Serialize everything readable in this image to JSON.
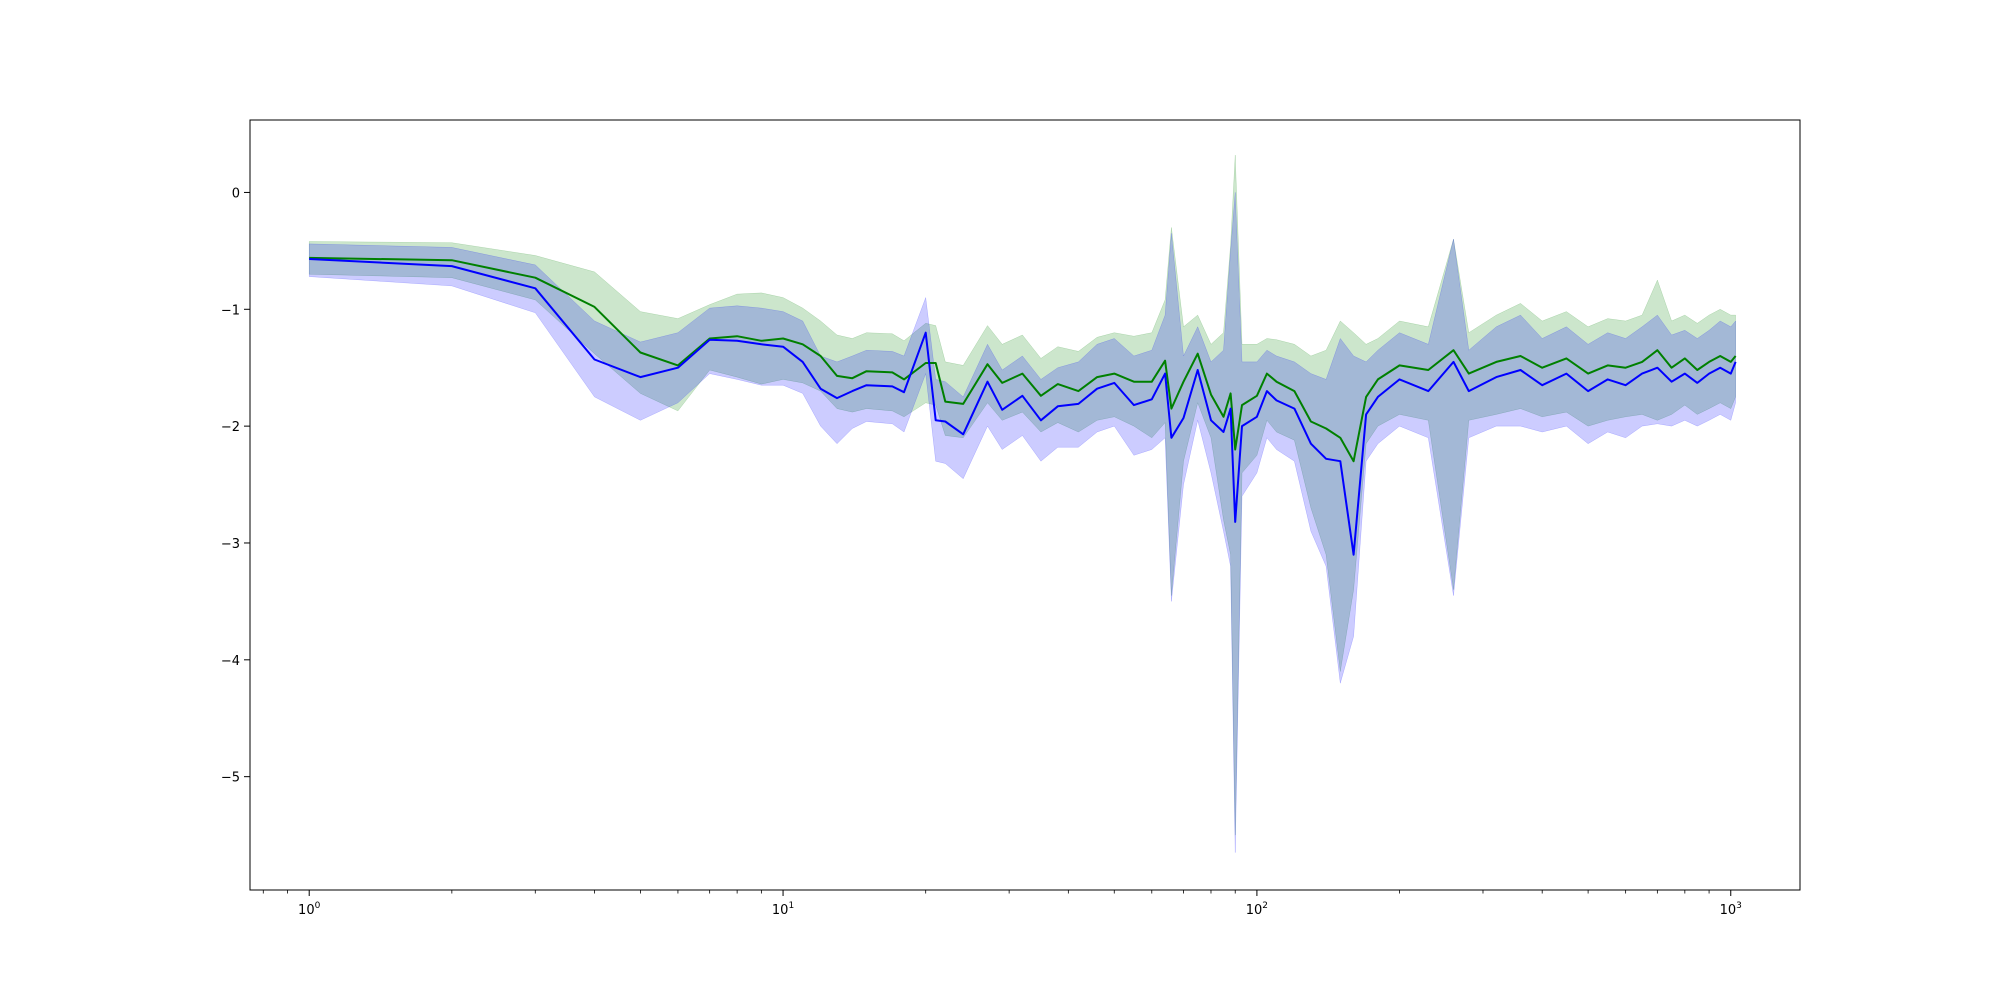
{
  "chart_data": {
    "type": "line",
    "xscale": "log",
    "xlim": [
      0.75,
      1400
    ],
    "ylim": [
      -5.97,
      0.62
    ],
    "grid": false,
    "legend": "none",
    "xticks": [
      {
        "value": 1,
        "base": "10",
        "exp": "0"
      },
      {
        "value": 10,
        "base": "10",
        "exp": "1"
      },
      {
        "value": 100,
        "base": "10",
        "exp": "2"
      },
      {
        "value": 1000,
        "base": "10",
        "exp": "3"
      }
    ],
    "yticks": [
      {
        "value": 0,
        "label": "0"
      },
      {
        "value": -1,
        "label": "−1"
      },
      {
        "value": -2,
        "label": "−2"
      },
      {
        "value": -3,
        "label": "−3"
      },
      {
        "value": -4,
        "label": "−4"
      },
      {
        "value": -5,
        "label": "−5"
      }
    ],
    "series": [
      {
        "color": "#008000",
        "band_color": "#008000",
        "band_opacity": 0.2,
        "points": [
          [
            1,
            -0.56,
            -0.42,
            -0.7
          ],
          [
            2,
            -0.58,
            -0.43,
            -0.73
          ],
          [
            3,
            -0.73,
            -0.54,
            -0.92
          ],
          [
            4,
            -0.98,
            -0.68,
            -1.38
          ],
          [
            5,
            -1.37,
            -1.02,
            -1.72
          ],
          [
            6,
            -1.48,
            -1.08,
            -1.87
          ],
          [
            7,
            -1.25,
            -0.96,
            -1.52
          ],
          [
            8,
            -1.23,
            -0.87,
            -1.58
          ],
          [
            9,
            -1.27,
            -0.86,
            -1.64
          ],
          [
            10,
            -1.25,
            -0.9,
            -1.6
          ],
          [
            11,
            -1.3,
            -0.99,
            -1.63
          ],
          [
            12,
            -1.4,
            -1.1,
            -1.7
          ],
          [
            13,
            -1.57,
            -1.22,
            -1.85
          ],
          [
            14,
            -1.59,
            -1.25,
            -1.88
          ],
          [
            15,
            -1.53,
            -1.2,
            -1.85
          ],
          [
            17,
            -1.54,
            -1.21,
            -1.87
          ],
          [
            18,
            -1.6,
            -1.27,
            -1.92
          ],
          [
            20,
            -1.46,
            -1.12,
            -1.8
          ],
          [
            21,
            -1.46,
            -1.14,
            -1.82
          ],
          [
            22,
            -1.79,
            -1.45,
            -2.08
          ],
          [
            24,
            -1.81,
            -1.48,
            -2.1
          ],
          [
            27,
            -1.47,
            -1.14,
            -1.8
          ],
          [
            29,
            -1.63,
            -1.3,
            -1.95
          ],
          [
            32,
            -1.55,
            -1.22,
            -1.88
          ],
          [
            35,
            -1.74,
            -1.42,
            -2.05
          ],
          [
            38,
            -1.64,
            -1.32,
            -1.97
          ],
          [
            42,
            -1.7,
            -1.36,
            -2.05
          ],
          [
            46,
            -1.58,
            -1.24,
            -1.95
          ],
          [
            50,
            -1.55,
            -1.2,
            -1.92
          ],
          [
            55,
            -1.62,
            -1.23,
            -2.0
          ],
          [
            60,
            -1.62,
            -1.2,
            -2.1
          ],
          [
            64,
            -1.44,
            -0.92,
            -1.97
          ],
          [
            66,
            -1.85,
            -0.3,
            -3.45
          ],
          [
            70,
            -1.62,
            -1.15,
            -2.3
          ],
          [
            75,
            -1.38,
            -1.05,
            -1.8
          ],
          [
            80,
            -1.73,
            -1.3,
            -2.1
          ],
          [
            85,
            -1.92,
            -1.2,
            -2.8
          ],
          [
            88,
            -1.72,
            -0.45,
            -3.1
          ],
          [
            90,
            -2.2,
            0.32,
            -5.5
          ],
          [
            93,
            -1.82,
            -1.3,
            -2.4
          ],
          [
            100,
            -1.74,
            -1.3,
            -2.25
          ],
          [
            105,
            -1.55,
            -1.25,
            -1.95
          ],
          [
            110,
            -1.62,
            -1.26,
            -2.05
          ],
          [
            120,
            -1.7,
            -1.3,
            -2.12
          ],
          [
            130,
            -1.96,
            -1.4,
            -2.7
          ],
          [
            140,
            -2.02,
            -1.35,
            -3.1
          ],
          [
            150,
            -2.1,
            -1.1,
            -4.1
          ],
          [
            160,
            -2.3,
            -1.2,
            -3.4
          ],
          [
            170,
            -1.75,
            -1.3,
            -2.15
          ],
          [
            180,
            -1.6,
            -1.25,
            -2.0
          ],
          [
            200,
            -1.48,
            -1.1,
            -1.9
          ],
          [
            230,
            -1.52,
            -1.15,
            -1.95
          ],
          [
            260,
            -1.35,
            -0.4,
            -3.4
          ],
          [
            280,
            -1.55,
            -1.2,
            -1.95
          ],
          [
            320,
            -1.45,
            -1.05,
            -1.9
          ],
          [
            360,
            -1.4,
            -0.95,
            -1.85
          ],
          [
            400,
            -1.5,
            -1.1,
            -1.92
          ],
          [
            450,
            -1.42,
            -1.02,
            -1.88
          ],
          [
            500,
            -1.55,
            -1.15,
            -2.0
          ],
          [
            550,
            -1.48,
            -1.08,
            -1.95
          ],
          [
            600,
            -1.5,
            -1.1,
            -1.92
          ],
          [
            650,
            -1.45,
            -1.05,
            -1.9
          ],
          [
            700,
            -1.35,
            -0.75,
            -1.95
          ],
          [
            750,
            -1.5,
            -1.1,
            -1.9
          ],
          [
            800,
            -1.42,
            -1.05,
            -1.82
          ],
          [
            850,
            -1.52,
            -1.12,
            -1.9
          ],
          [
            900,
            -1.45,
            -1.05,
            -1.85
          ],
          [
            950,
            -1.4,
            -1.0,
            -1.8
          ],
          [
            1000,
            -1.45,
            -1.05,
            -1.85
          ],
          [
            1024,
            -1.4,
            -1.05,
            -1.75
          ]
        ]
      },
      {
        "color": "#0000ff",
        "band_color": "#0000ff",
        "band_opacity": 0.2,
        "points": [
          [
            1,
            -0.57,
            -0.44,
            -0.72
          ],
          [
            2,
            -0.63,
            -0.47,
            -0.8
          ],
          [
            3,
            -0.82,
            -0.62,
            -1.03
          ],
          [
            4,
            -1.43,
            -1.1,
            -1.75
          ],
          [
            5,
            -1.58,
            -1.28,
            -1.95
          ],
          [
            6,
            -1.5,
            -1.2,
            -1.8
          ],
          [
            7,
            -1.26,
            -0.99,
            -1.55
          ],
          [
            8,
            -1.27,
            -0.97,
            -1.6
          ],
          [
            9,
            -1.3,
            -0.99,
            -1.65
          ],
          [
            10,
            -1.32,
            -1.02,
            -1.65
          ],
          [
            11,
            -1.45,
            -1.1,
            -1.72
          ],
          [
            12,
            -1.68,
            -1.4,
            -2.0
          ],
          [
            13,
            -1.76,
            -1.45,
            -2.15
          ],
          [
            14,
            -1.7,
            -1.4,
            -2.02
          ],
          [
            15,
            -1.65,
            -1.35,
            -1.96
          ],
          [
            17,
            -1.66,
            -1.36,
            -1.98
          ],
          [
            18,
            -1.71,
            -1.4,
            -2.05
          ],
          [
            20,
            -1.2,
            -0.9,
            -1.55
          ],
          [
            21,
            -1.95,
            -1.6,
            -2.3
          ],
          [
            22,
            -1.96,
            -1.62,
            -2.32
          ],
          [
            24,
            -2.07,
            -1.75,
            -2.45
          ],
          [
            27,
            -1.62,
            -1.3,
            -2.0
          ],
          [
            29,
            -1.86,
            -1.52,
            -2.2
          ],
          [
            32,
            -1.74,
            -1.4,
            -2.08
          ],
          [
            35,
            -1.95,
            -1.6,
            -2.3
          ],
          [
            38,
            -1.83,
            -1.5,
            -2.18
          ],
          [
            42,
            -1.81,
            -1.45,
            -2.18
          ],
          [
            46,
            -1.68,
            -1.3,
            -2.05
          ],
          [
            50,
            -1.63,
            -1.25,
            -2.0
          ],
          [
            55,
            -1.82,
            -1.4,
            -2.25
          ],
          [
            60,
            -1.77,
            -1.35,
            -2.2
          ],
          [
            64,
            -1.55,
            -1.05,
            -2.1
          ],
          [
            66,
            -2.1,
            -0.35,
            -3.5
          ],
          [
            70,
            -1.93,
            -1.4,
            -2.5
          ],
          [
            75,
            -1.52,
            -1.15,
            -1.95
          ],
          [
            80,
            -1.95,
            -1.45,
            -2.4
          ],
          [
            85,
            -2.05,
            -1.35,
            -2.9
          ],
          [
            88,
            -1.85,
            -0.5,
            -3.2
          ],
          [
            90,
            -2.82,
            0.0,
            -5.65
          ],
          [
            93,
            -2.0,
            -1.45,
            -2.6
          ],
          [
            100,
            -1.92,
            -1.45,
            -2.4
          ],
          [
            105,
            -1.7,
            -1.35,
            -2.1
          ],
          [
            110,
            -1.78,
            -1.4,
            -2.2
          ],
          [
            120,
            -1.85,
            -1.45,
            -2.3
          ],
          [
            130,
            -2.15,
            -1.55,
            -2.9
          ],
          [
            140,
            -2.28,
            -1.6,
            -3.2
          ],
          [
            150,
            -2.3,
            -1.25,
            -4.2
          ],
          [
            160,
            -3.1,
            -1.4,
            -3.8
          ],
          [
            170,
            -1.9,
            -1.45,
            -2.3
          ],
          [
            180,
            -1.75,
            -1.35,
            -2.15
          ],
          [
            200,
            -1.6,
            -1.2,
            -2.0
          ],
          [
            230,
            -1.7,
            -1.3,
            -2.1
          ],
          [
            260,
            -1.45,
            -0.4,
            -3.45
          ],
          [
            280,
            -1.7,
            -1.35,
            -2.1
          ],
          [
            320,
            -1.58,
            -1.15,
            -2.0
          ],
          [
            360,
            -1.52,
            -1.05,
            -2.0
          ],
          [
            400,
            -1.65,
            -1.25,
            -2.05
          ],
          [
            450,
            -1.55,
            -1.15,
            -2.0
          ],
          [
            500,
            -1.7,
            -1.3,
            -2.15
          ],
          [
            550,
            -1.6,
            -1.2,
            -2.05
          ],
          [
            600,
            -1.65,
            -1.25,
            -2.1
          ],
          [
            650,
            -1.55,
            -1.15,
            -2.0
          ],
          [
            700,
            -1.5,
            -1.05,
            -1.98
          ],
          [
            750,
            -1.62,
            -1.22,
            -2.0
          ],
          [
            800,
            -1.55,
            -1.18,
            -1.95
          ],
          [
            850,
            -1.63,
            -1.25,
            -2.0
          ],
          [
            900,
            -1.55,
            -1.18,
            -1.95
          ],
          [
            950,
            -1.5,
            -1.1,
            -1.9
          ],
          [
            1000,
            -1.55,
            -1.15,
            -1.95
          ],
          [
            1024,
            -1.45,
            -1.1,
            -1.8
          ]
        ]
      }
    ]
  }
}
